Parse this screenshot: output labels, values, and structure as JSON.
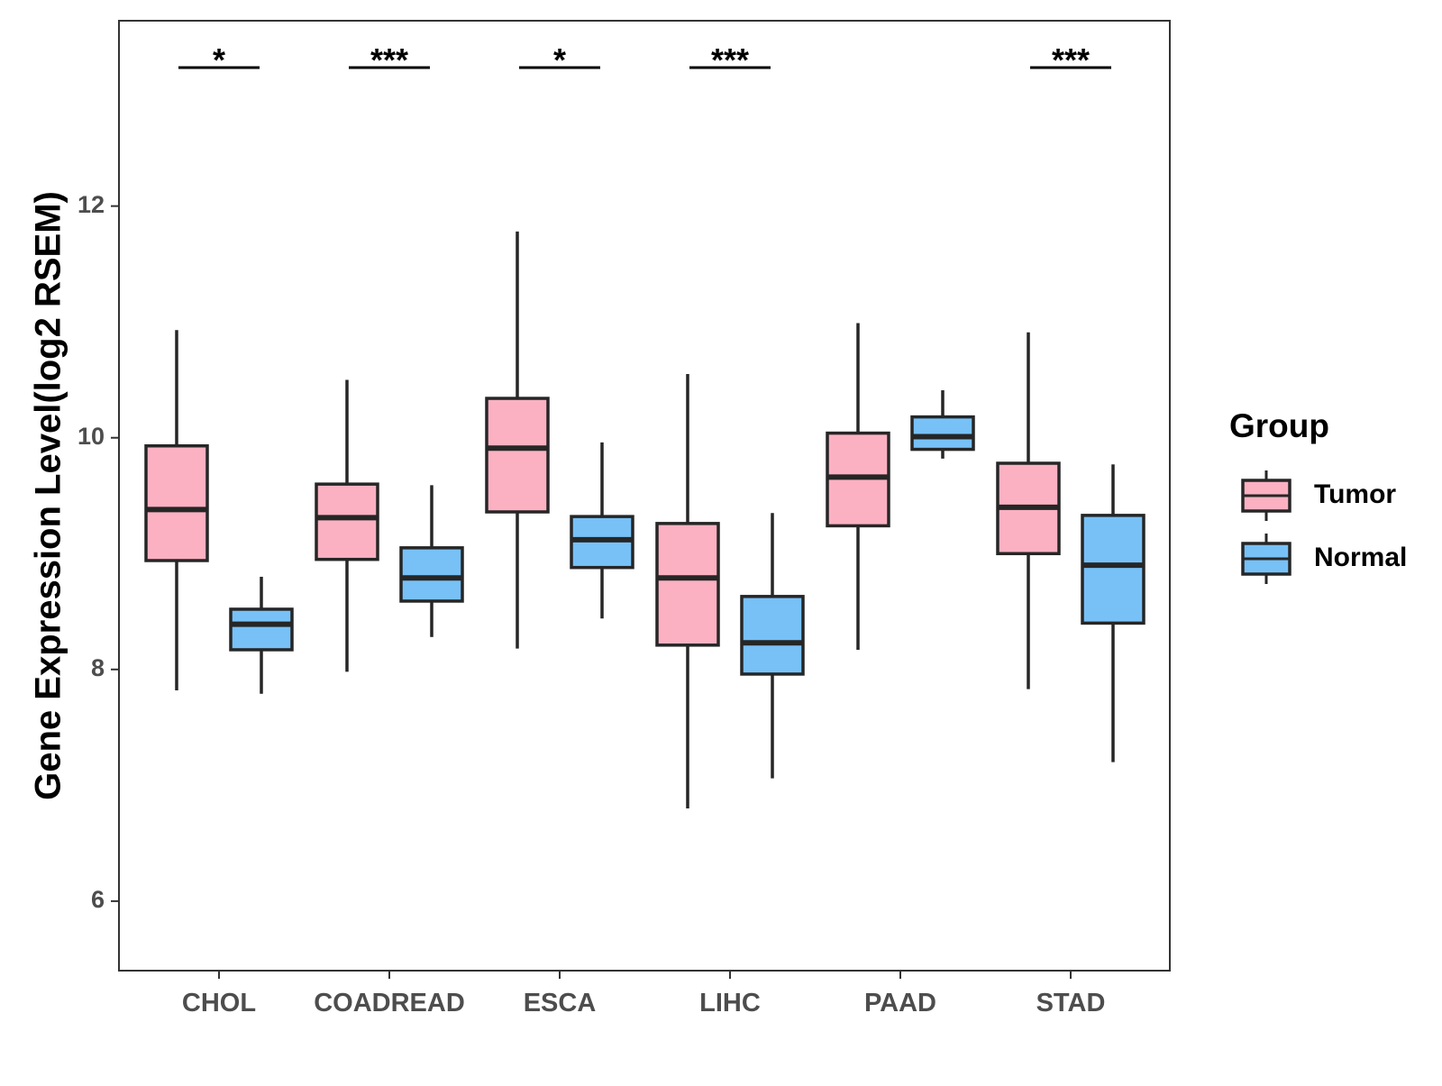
{
  "chart_data": {
    "type": "boxplot",
    "title": "",
    "xlabel": "",
    "ylabel": "Gene Expression Level(log2 RSEM)",
    "ylim": [
      5.4,
      13.6
    ],
    "yticks": [
      6,
      8,
      10,
      12
    ],
    "categories": [
      "CHOL",
      "COADREAD",
      "ESCA",
      "LIHC",
      "PAAD",
      "STAD"
    ],
    "legend": {
      "title": "Group",
      "position": "right",
      "entries": [
        {
          "name": "Tumor",
          "color": "#FBB1C2"
        },
        {
          "name": "Normal",
          "color": "#77C1F7"
        }
      ]
    },
    "series": [
      {
        "name": "Tumor",
        "color": "#FBB1C2",
        "boxes": [
          {
            "min": 7.82,
            "q1": 8.94,
            "median": 9.38,
            "q3": 9.93,
            "max": 10.93
          },
          {
            "min": 7.98,
            "q1": 8.95,
            "median": 9.31,
            "q3": 9.6,
            "max": 10.5
          },
          {
            "min": 8.18,
            "q1": 9.36,
            "median": 9.91,
            "q3": 10.34,
            "max": 11.78
          },
          {
            "min": 6.8,
            "q1": 8.21,
            "median": 8.79,
            "q3": 9.26,
            "max": 10.55
          },
          {
            "min": 8.17,
            "q1": 9.24,
            "median": 9.66,
            "q3": 10.04,
            "max": 10.99
          },
          {
            "min": 7.83,
            "q1": 9.0,
            "median": 9.4,
            "q3": 9.78,
            "max": 10.91
          }
        ]
      },
      {
        "name": "Normal",
        "color": "#77C1F7",
        "boxes": [
          {
            "min": 7.79,
            "q1": 8.17,
            "median": 8.39,
            "q3": 8.52,
            "max": 8.8
          },
          {
            "min": 8.28,
            "q1": 8.59,
            "median": 8.79,
            "q3": 9.05,
            "max": 9.59
          },
          {
            "min": 8.44,
            "q1": 8.88,
            "median": 9.12,
            "q3": 9.32,
            "max": 9.96
          },
          {
            "min": 7.06,
            "q1": 7.96,
            "median": 8.23,
            "q3": 8.63,
            "max": 9.35
          },
          {
            "min": 9.82,
            "q1": 9.9,
            "median": 10.01,
            "q3": 10.18,
            "max": 10.41
          },
          {
            "min": 7.2,
            "q1": 8.4,
            "median": 8.9,
            "q3": 9.33,
            "max": 9.77
          }
        ]
      }
    ],
    "significance": [
      "*",
      "***",
      "*",
      "***",
      "",
      "***"
    ]
  }
}
